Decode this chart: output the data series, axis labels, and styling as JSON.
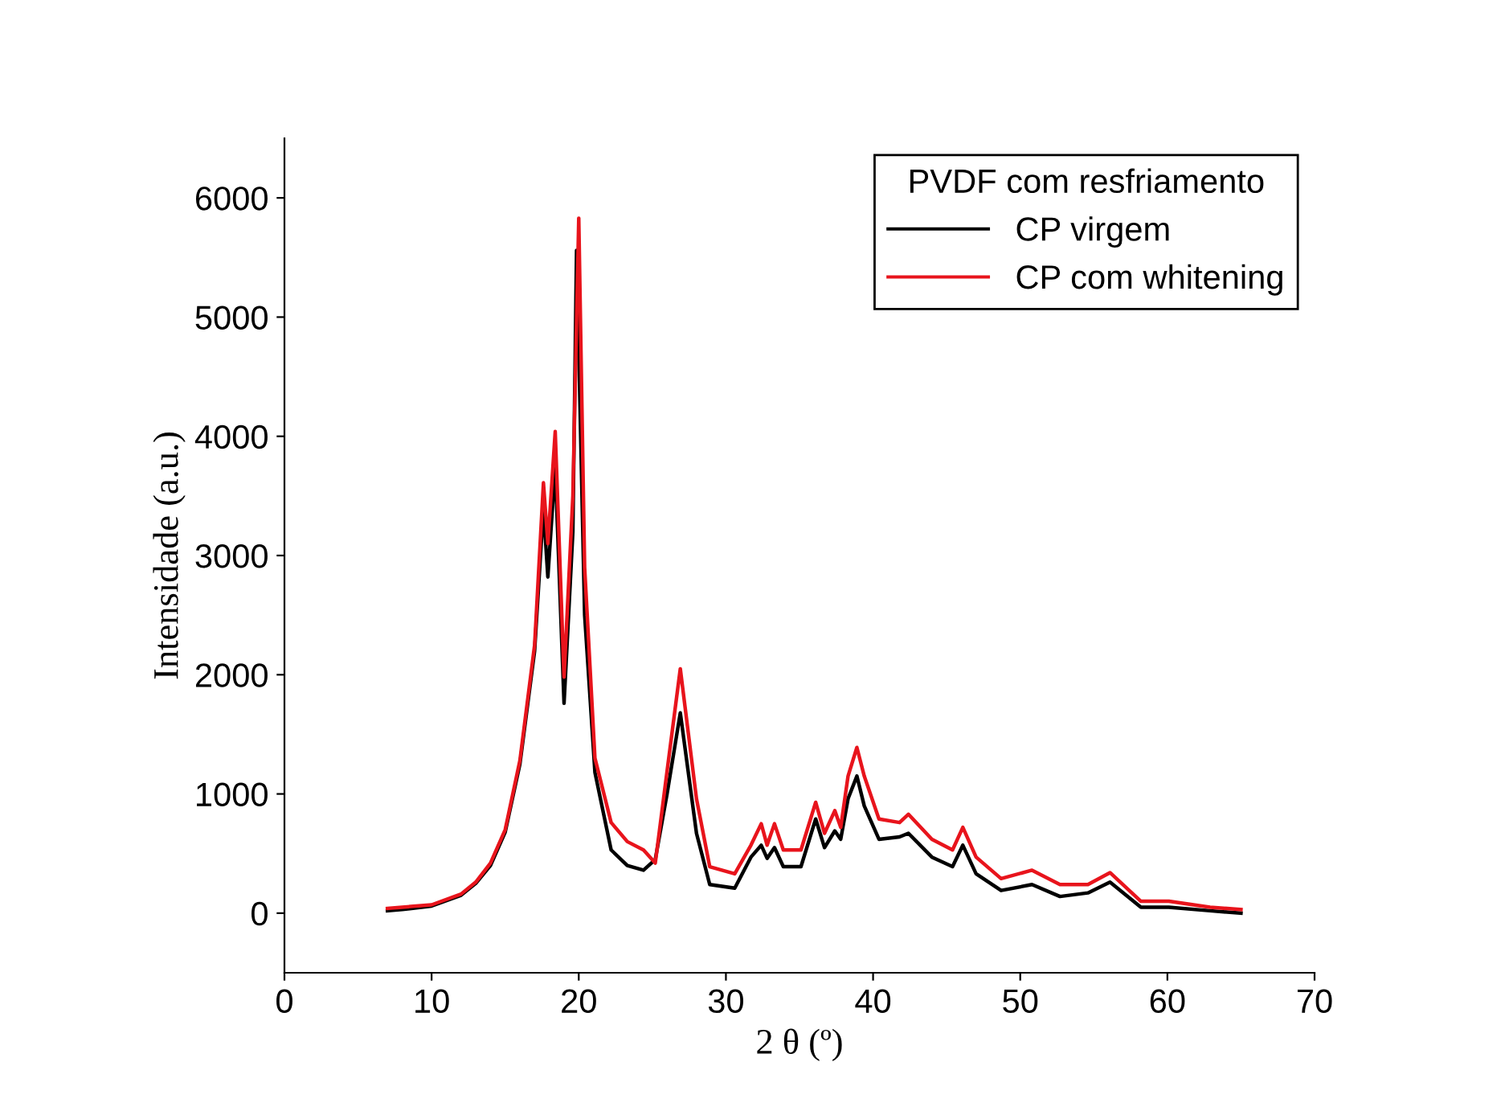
{
  "chart_data": {
    "type": "line",
    "xlabel": "2 θ (º)",
    "ylabel": "Intensidade (a.u.)",
    "xlim": [
      0,
      70
    ],
    "xticks": [
      0,
      10,
      20,
      30,
      40,
      50,
      60,
      70
    ],
    "ylim": [
      -500,
      6500
    ],
    "yticks": [
      0,
      1000,
      2000,
      3000,
      4000,
      5000,
      6000
    ],
    "grid": false,
    "legend": "top right",
    "legend_title": "PVDF com resfriamento",
    "series": [
      {
        "name": "CP virgem",
        "color": "#000000",
        "x": [
          7,
          8,
          10,
          12,
          13,
          14,
          15,
          16,
          17,
          17.6,
          17.9,
          18.4,
          19.0,
          19.6,
          19.85,
          20.4,
          21.1,
          22.2,
          23.3,
          24.4,
          25.2,
          26.0,
          26.9,
          28.0,
          28.9,
          30.6,
          31.7,
          32.4,
          32.8,
          33.3,
          33.9,
          35.1,
          36.1,
          36.7,
          37.4,
          37.8,
          38.3,
          38.9,
          39.4,
          40.4,
          41.8,
          42.4,
          44.0,
          45.4,
          46.1,
          47.0,
          48.7,
          50.8,
          52.7,
          54.6,
          56.1,
          58.2,
          60.1,
          62.9,
          65
        ],
        "values": [
          20,
          30,
          60,
          150,
          250,
          400,
          680,
          1250,
          2200,
          3400,
          2820,
          3750,
          1760,
          3200,
          5560,
          2500,
          1180,
          530,
          400,
          360,
          450,
          1000,
          1680,
          670,
          240,
          210,
          470,
          570,
          460,
          550,
          390,
          390,
          790,
          550,
          690,
          620,
          960,
          1150,
          900,
          620,
          640,
          670,
          470,
          390,
          570,
          330,
          190,
          240,
          140,
          170,
          260,
          50,
          50,
          20,
          0
        ]
      },
      {
        "name": "CP com whitening",
        "color": "#e8141c",
        "x": [
          7,
          8,
          10,
          12,
          13,
          14,
          15,
          16,
          17,
          17.6,
          17.9,
          18.4,
          19.0,
          19.6,
          20.0,
          20.4,
          21.1,
          22.2,
          23.3,
          24.4,
          25.2,
          26.0,
          26.9,
          28.0,
          28.9,
          30.6,
          31.7,
          32.4,
          32.8,
          33.3,
          33.9,
          35.1,
          36.1,
          36.7,
          37.4,
          37.8,
          38.3,
          38.9,
          39.4,
          40.4,
          41.8,
          42.4,
          44.0,
          45.4,
          46.1,
          47.0,
          48.7,
          50.8,
          52.7,
          54.6,
          56.1,
          58.2,
          60.1,
          62.9,
          65
        ],
        "values": [
          40,
          50,
          70,
          160,
          260,
          420,
          700,
          1280,
          2250,
          3610,
          3100,
          4040,
          1980,
          3500,
          5830,
          2900,
          1300,
          760,
          600,
          530,
          420,
          1190,
          2050,
          960,
          390,
          330,
          570,
          750,
          570,
          750,
          530,
          530,
          930,
          670,
          860,
          720,
          1150,
          1390,
          1150,
          790,
          760,
          830,
          620,
          530,
          720,
          470,
          290,
          360,
          240,
          240,
          340,
          100,
          100,
          50,
          30
        ]
      }
    ]
  }
}
